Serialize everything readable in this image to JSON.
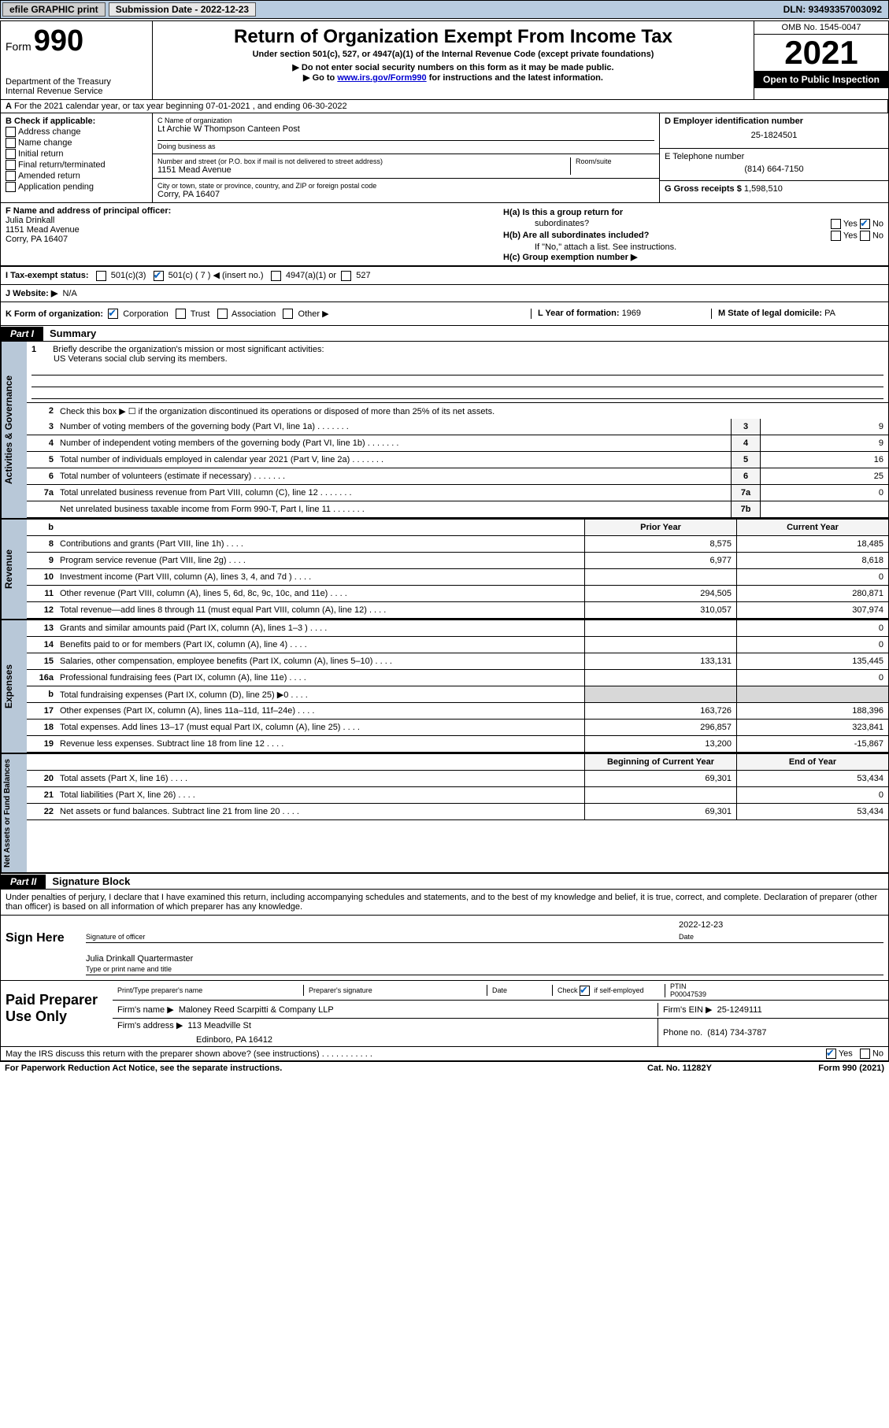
{
  "topbar": {
    "efile": "efile GRAPHIC print",
    "submission_label": "Submission Date - 2022-12-23",
    "dln": "DLN: 93493357003092"
  },
  "header": {
    "form_word": "Form",
    "form_number": "990",
    "dept": "Department of the Treasury",
    "irs": "Internal Revenue Service",
    "title": "Return of Organization Exempt From Income Tax",
    "subtitle": "Under section 501(c), 527, or 4947(a)(1) of the Internal Revenue Code (except private foundations)",
    "arrow1": "Do not enter social security numbers on this form as it may be made public.",
    "arrow2_pre": "Go to ",
    "arrow2_link": "www.irs.gov/Form990",
    "arrow2_post": " for instructions and the latest information.",
    "omb": "OMB No. 1545-0047",
    "year": "2021",
    "open_public": "Open to Public Inspection"
  },
  "line_a": {
    "a_label": "A",
    "text": "For the 2021 calendar year, or tax year beginning 07-01-2021    , and ending 06-30-2022"
  },
  "col_b": {
    "label": "B Check if applicable:",
    "opts": [
      "Address change",
      "Name change",
      "Initial return",
      "Final return/terminated",
      "Amended return",
      "Application pending"
    ]
  },
  "col_c": {
    "name_label": "C Name of organization",
    "name": "Lt Archie W Thompson Canteen Post",
    "dba_label": "Doing business as",
    "dba": "",
    "street_label": "Number and street (or P.O. box if mail is not delivered to street address)",
    "room_label": "Room/suite",
    "street": "1151 Mead Avenue",
    "city_label": "City or town, state or province, country, and ZIP or foreign postal code",
    "city": "Corry, PA  16407"
  },
  "col_de": {
    "d_label": "D Employer identification number",
    "d_value": "25-1824501",
    "e_label": "E Telephone number",
    "e_value": "(814) 664-7150",
    "g_label": "G Gross receipts $",
    "g_value": "1,598,510"
  },
  "f": {
    "label": "F Name and address of principal officer:",
    "name": "Julia Drinkall",
    "street": "1151 Mead Avenue",
    "city": "Corry, PA  16407"
  },
  "h": {
    "ha_label": "H(a)  Is this a group return for",
    "ha_sub": "subordinates?",
    "yes": "Yes",
    "no": "No",
    "hb_label": "H(b)  Are all subordinates included?",
    "hb_note": "If \"No,\" attach a list. See instructions.",
    "hc_label": "H(c)  Group exemption number ▶"
  },
  "i": {
    "label": "I    Tax-exempt status:",
    "opt1": "501(c)(3)",
    "opt2": "501(c) ( 7 ) ◀ (insert no.)",
    "opt3": "4947(a)(1) or",
    "opt4": "527"
  },
  "j": {
    "label": "J    Website: ▶",
    "value": "N/A"
  },
  "k": {
    "label": "K Form of organization:",
    "opts": [
      "Corporation",
      "Trust",
      "Association",
      "Other ▶"
    ],
    "l_label": "L Year of formation:",
    "l_value": "1969",
    "m_label": "M State of legal domicile:",
    "m_value": "PA"
  },
  "part1": {
    "label": "Part I",
    "title": "Summary"
  },
  "vtabs": {
    "ag": "Activities & Governance",
    "rev": "Revenue",
    "exp": "Expenses",
    "na": "Net Assets or Fund Balances"
  },
  "summary": {
    "q1_label": "Briefly describe the organization's mission or most significant activities:",
    "q1_text": "US Veterans social club serving its members.",
    "q2": "Check this box ▶ ☐  if the organization discontinued its operations or disposed of more than 25% of its net assets.",
    "rows_gov": [
      {
        "n": "3",
        "d": "Number of voting members of the governing body (Part VI, line 1a)",
        "box": "3",
        "v": "9"
      },
      {
        "n": "4",
        "d": "Number of independent voting members of the governing body (Part VI, line 1b)",
        "box": "4",
        "v": "9"
      },
      {
        "n": "5",
        "d": "Total number of individuals employed in calendar year 2021 (Part V, line 2a)",
        "box": "5",
        "v": "16"
      },
      {
        "n": "6",
        "d": "Total number of volunteers (estimate if necessary)",
        "box": "6",
        "v": "25"
      },
      {
        "n": "7a",
        "d": "Total unrelated business revenue from Part VIII, column (C), line 12",
        "box": "7a",
        "v": "0"
      },
      {
        "n": "",
        "d": "Net unrelated business taxable income from Form 990-T, Part I, line 11",
        "box": "7b",
        "v": ""
      }
    ],
    "col_head_b": "b",
    "prior": "Prior Year",
    "current": "Current Year",
    "rows_rev": [
      {
        "n": "8",
        "d": "Contributions and grants (Part VIII, line 1h)",
        "p": "8,575",
        "c": "18,485"
      },
      {
        "n": "9",
        "d": "Program service revenue (Part VIII, line 2g)",
        "p": "6,977",
        "c": "8,618"
      },
      {
        "n": "10",
        "d": "Investment income (Part VIII, column (A), lines 3, 4, and 7d )",
        "p": "",
        "c": "0"
      },
      {
        "n": "11",
        "d": "Other revenue (Part VIII, column (A), lines 5, 6d, 8c, 9c, 10c, and 11e)",
        "p": "294,505",
        "c": "280,871"
      },
      {
        "n": "12",
        "d": "Total revenue—add lines 8 through 11 (must equal Part VIII, column (A), line 12)",
        "p": "310,057",
        "c": "307,974"
      }
    ],
    "rows_exp": [
      {
        "n": "13",
        "d": "Grants and similar amounts paid (Part IX, column (A), lines 1–3 )",
        "p": "",
        "c": "0"
      },
      {
        "n": "14",
        "d": "Benefits paid to or for members (Part IX, column (A), line 4)",
        "p": "",
        "c": "0"
      },
      {
        "n": "15",
        "d": "Salaries, other compensation, employee benefits (Part IX, column (A), lines 5–10)",
        "p": "133,131",
        "c": "135,445"
      },
      {
        "n": "16a",
        "d": "Professional fundraising fees (Part IX, column (A), line 11e)",
        "p": "",
        "c": "0"
      },
      {
        "n": "b",
        "d": "Total fundraising expenses (Part IX, column (D), line 25) ▶0",
        "p": "__gray__",
        "c": "__gray__"
      },
      {
        "n": "17",
        "d": "Other expenses (Part IX, column (A), lines 11a–11d, 11f–24e)",
        "p": "163,726",
        "c": "188,396"
      },
      {
        "n": "18",
        "d": "Total expenses. Add lines 13–17 (must equal Part IX, column (A), line 25)",
        "p": "296,857",
        "c": "323,841"
      },
      {
        "n": "19",
        "d": "Revenue less expenses. Subtract line 18 from line 12",
        "p": "13,200",
        "c": "-15,867"
      }
    ],
    "begin": "Beginning of Current Year",
    "end": "End of Year",
    "rows_na": [
      {
        "n": "20",
        "d": "Total assets (Part X, line 16)",
        "p": "69,301",
        "c": "53,434"
      },
      {
        "n": "21",
        "d": "Total liabilities (Part X, line 26)",
        "p": "",
        "c": "0"
      },
      {
        "n": "22",
        "d": "Net assets or fund balances. Subtract line 21 from line 20",
        "p": "69,301",
        "c": "53,434"
      }
    ]
  },
  "part2": {
    "label": "Part II",
    "title": "Signature Block"
  },
  "declare": "Under penalties of perjury, I declare that I have examined this return, including accompanying schedules and statements, and to the best of my knowledge and belief, it is true, correct, and complete. Declaration of preparer (other than officer) is based on all information of which preparer has any knowledge.",
  "sign": {
    "label": "Sign Here",
    "sig_label": "Signature of officer",
    "date_label": "Date",
    "date_value": "2022-12-23",
    "name_line": "Julia Drinkall  Quartermaster",
    "name_label": "Type or print name and title"
  },
  "preparer": {
    "label": "Paid Preparer Use Only",
    "col1": "Print/Type preparer's name",
    "col2": "Preparer's signature",
    "col3": "Date",
    "col4_label": "Check",
    "col4_sub": "if self-employed",
    "col5_label": "PTIN",
    "col5_value": "P00047539",
    "firm_name_label": "Firm's name    ▶",
    "firm_name": "Maloney Reed Scarpitti & Company LLP",
    "firm_ein_label": "Firm's EIN ▶",
    "firm_ein": "25-1249111",
    "firm_addr_label": "Firm's address ▶",
    "firm_addr1": "113 Meadville St",
    "firm_addr2": "Edinboro, PA  16412",
    "phone_label": "Phone no.",
    "phone": "(814) 734-3787"
  },
  "footer": {
    "discuss": "May the IRS discuss this return with the preparer shown above? (see instructions)",
    "yes": "Yes",
    "no": "No",
    "paperwork": "For Paperwork Reduction Act Notice, see the separate instructions.",
    "cat": "Cat. No. 11282Y",
    "form": "Form 990 (2021)"
  }
}
